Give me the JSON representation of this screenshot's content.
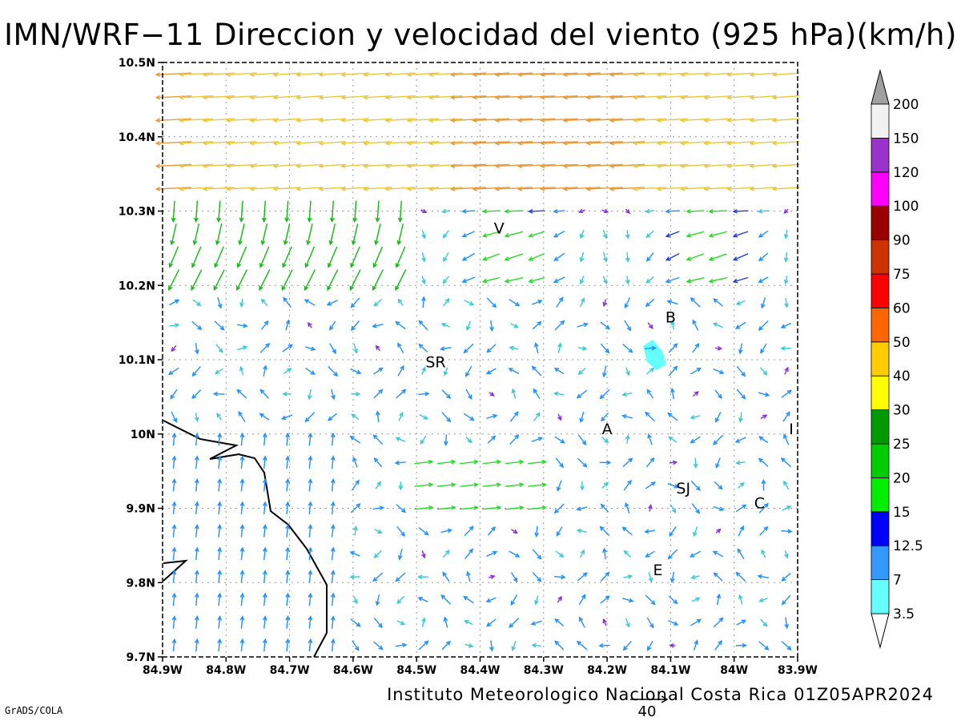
{
  "title": "IMN/WRF−11 Direccion y velocidad del viento (925 hPa)(km/h)",
  "footer": "Instituto Meteorologico Nacional Costa Rica 01Z05APR2024",
  "credit": "GrADS/COLA",
  "reference_vector": {
    "label": "40"
  },
  "map": {
    "lon_range": [
      -84.9,
      -83.9
    ],
    "lat_range": [
      9.7,
      10.5
    ],
    "x_ticks": [
      "84.9W",
      "84.8W",
      "84.7W",
      "84.6W",
      "84.5W",
      "84.4W",
      "84.3W",
      "84.2W",
      "84.1W",
      "84W",
      "83.9W"
    ],
    "y_ticks": [
      "9.7N",
      "9.8N",
      "9.9N",
      "10N",
      "10.1N",
      "10.2N",
      "10.3N",
      "10.4N",
      "10.5N"
    ],
    "grid": "dotted"
  },
  "places": [
    {
      "label": "V",
      "lon": -84.37,
      "lat": 10.27
    },
    {
      "label": "B",
      "lon": -84.1,
      "lat": 10.15
    },
    {
      "label": "SR",
      "lon": -84.47,
      "lat": 10.09
    },
    {
      "label": "A",
      "lon": -84.2,
      "lat": 10.0
    },
    {
      "label": "I",
      "lon": -83.91,
      "lat": 10.0
    },
    {
      "label": "SJ",
      "lon": -84.08,
      "lat": 9.92
    },
    {
      "label": "C",
      "lon": -83.96,
      "lat": 9.9
    },
    {
      "label": "E",
      "lon": -84.12,
      "lat": 9.81
    }
  ],
  "colorbar": {
    "labels": [
      "3.5",
      "7",
      "12.5",
      "15",
      "20",
      "25",
      "30",
      "40",
      "50",
      "60",
      "75",
      "90",
      "100",
      "120",
      "150",
      "200"
    ],
    "colors": [
      "#66ffff",
      "#3399ff",
      "#0000ff",
      "#00ee00",
      "#00cc00",
      "#009900",
      "#ffff00",
      "#ffcc00",
      "#ff6600",
      "#ff0000",
      "#cc3300",
      "#990000",
      "#ff00ff",
      "#9933cc",
      "#f2f2f2",
      "#a0a0a0"
    ]
  },
  "chart_data": {
    "type": "vector field",
    "variable": "Direccion y velocidad del viento (925 hPa)(km/h)",
    "regions": [
      {
        "area": "northern band 10.35N-10.5N",
        "direction": "from east to west",
        "speed_kmh": "30-50"
      },
      {
        "area": "northwest 10.2N-10.35N, 84.9W-84.5W",
        "direction": "southward / south-westward",
        "speed_kmh": "15-30"
      },
      {
        "area": "central 10.0N-10.2N",
        "direction": "variable / light",
        "speed_kmh": "3.5-12.5"
      },
      {
        "area": "southwest lowlands 9.7N-10.0N, 84.9W-84.6W",
        "direction": "northward",
        "speed_kmh": "7-12.5"
      },
      {
        "area": "corridor 9.9N-9.95N, 84.5W-84.3W",
        "direction": "eastward",
        "speed_kmh": "15-20"
      },
      {
        "area": "southeast 9.7N-9.9N, 84.3W-83.9W",
        "direction": "variable",
        "speed_kmh": "3.5-15"
      }
    ]
  }
}
